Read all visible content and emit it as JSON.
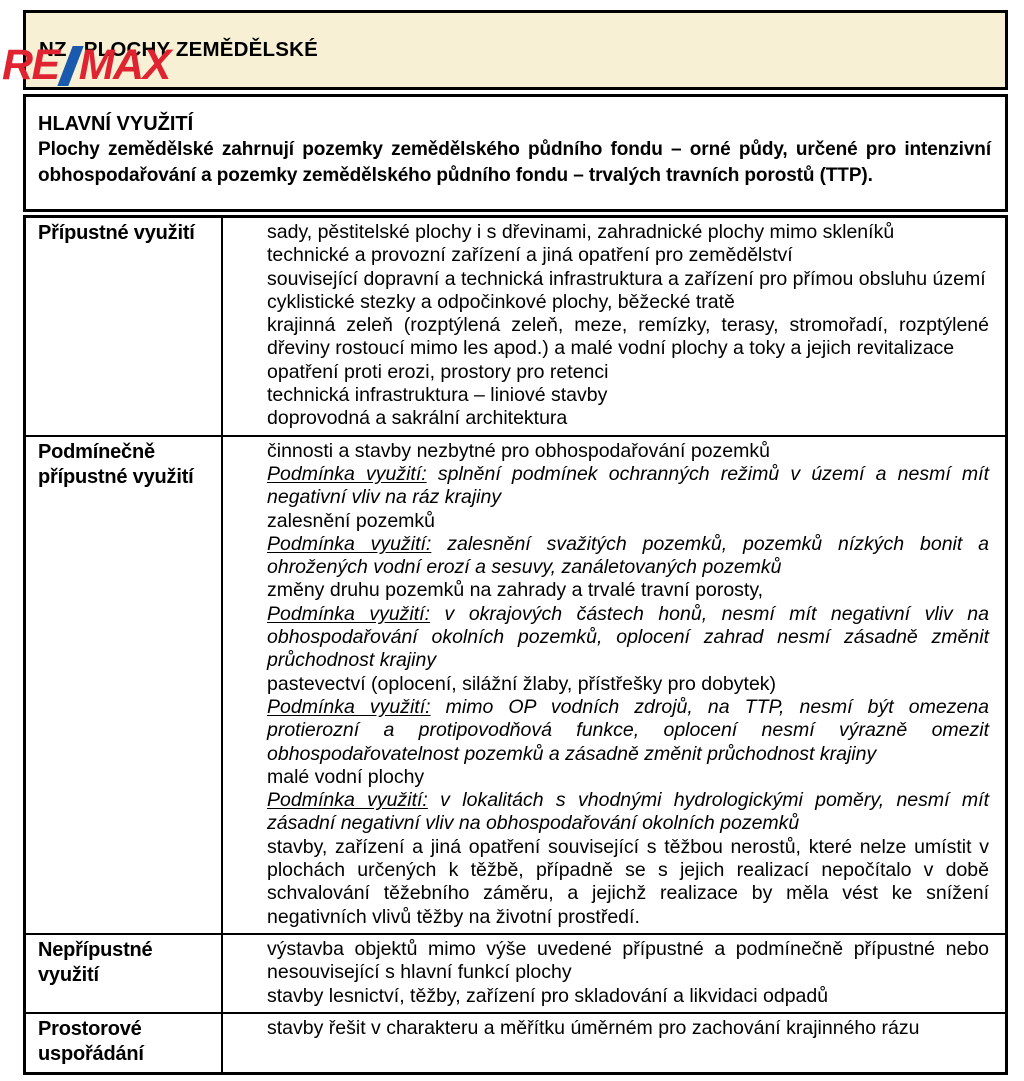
{
  "colors": {
    "header_background": "#F7F0D5",
    "border": "#000000",
    "logo_red": "#E02330",
    "logo_blue": "#1959AE"
  },
  "logo": {
    "re": "RE",
    "slash_icon": "diagonal-slash",
    "max": "MAX"
  },
  "header": {
    "code": "NZ",
    "title": "PLOCHY ZEMĚDĚLSKÉ"
  },
  "main_use": {
    "heading": "HLAVNÍ VYUŽITÍ",
    "text": "Plochy zemědělské zahrnují pozemky zemědělského půdního fondu – orné půdy, určené pro intenzivní obhospodařování a pozemky zemědělského půdního fondu – trvalých travních porostů (TTP)."
  },
  "condition_prefix": "Podmínka využití:",
  "table": {
    "rows": [
      {
        "label": "Přípustné využití",
        "items": [
          {
            "type": "plain",
            "text": "sady, pěstitelské plochy i s dřevinami, zahradnické plochy mimo skleníků"
          },
          {
            "type": "plain",
            "text": "technické a provozní zařízení a jiná opatření pro zemědělství"
          },
          {
            "type": "plain",
            "text": "související dopravní a technická infrastruktura a zařízení pro přímou obsluhu území"
          },
          {
            "type": "plain",
            "text": "cyklistické stezky a odpočinkové plochy, běžecké tratě"
          },
          {
            "type": "plain",
            "text": "krajinná zeleň (rozptýlená zeleň, meze, remízky, terasy, stromořadí, rozptýlené dřeviny rostoucí mimo les apod.) a malé vodní plochy a toky a jejich revitalizace"
          },
          {
            "type": "plain",
            "text": "opatření proti erozi, prostory pro retenci"
          },
          {
            "type": "plain",
            "text": "technická infrastruktura – liniové stavby"
          },
          {
            "type": "plain",
            "text": "doprovodná a sakrální architektura"
          }
        ]
      },
      {
        "label": "Podmínečně přípustné využití",
        "items": [
          {
            "type": "plain",
            "text": "činnosti a stavby nezbytné pro obhospodařování pozemků"
          },
          {
            "type": "condition",
            "text": "splnění podmínek ochranných režimů v území a nesmí mít negativní vliv na ráz krajiny"
          },
          {
            "type": "plain",
            "text": "zalesnění pozemků"
          },
          {
            "type": "condition",
            "text": "zalesnění svažitých pozemků, pozemků nízkých bonit a ohrožených vodní erozí a sesuvy, zanáletovaných pozemků"
          },
          {
            "type": "plain",
            "text": "změny druhu pozemků na zahrady a trvalé travní porosty,"
          },
          {
            "type": "condition",
            "text": "v okrajových částech honů, nesmí mít negativní vliv na obhospodařování okolních pozemků, oplocení zahrad nesmí zásadně změnit průchodnost krajiny"
          },
          {
            "type": "plain",
            "text": "pastevectví (oplocení, silážní žlaby, přístřešky pro dobytek)"
          },
          {
            "type": "condition",
            "text": "mimo OP vodních zdrojů, na TTP, nesmí být omezena protierozní a protipovodňová funkce, oplocení nesmí výrazně omezit obhospodařovatelnost pozemků a zásadně změnit průchodnost krajiny"
          },
          {
            "type": "plain",
            "text": "malé vodní plochy"
          },
          {
            "type": "condition",
            "text": "v lokalitách s vhodnými hydrologickými poměry, nesmí mít zásadní negativní vliv na obhospodařování okolních pozemků"
          },
          {
            "type": "plain",
            "text": "stavby, zařízení a jiná opatření související s těžbou nerostů, které nelze umístit v plochách určených k těžbě, případně se s jejich realizací nepočítalo v době schvalování těžebního záměru, a jejichž realizace by měla vést ke snížení negativních vlivů těžby na životní prostředí."
          }
        ]
      },
      {
        "label": "Nepřípustné využití",
        "items": [
          {
            "type": "plain",
            "text": "výstavba objektů mimo výše uvedené přípustné a podmínečně přípustné nebo nesouvisející s hlavní funkcí plochy"
          },
          {
            "type": "plain",
            "text": "stavby lesnictví, těžby, zařízení pro skladování a likvidaci odpadů"
          }
        ]
      },
      {
        "label": "Prostorové uspořádání",
        "items": [
          {
            "type": "plain",
            "text": "stavby řešit v charakteru a měřítku úměrném pro zachování krajinného rázu"
          }
        ]
      }
    ]
  }
}
